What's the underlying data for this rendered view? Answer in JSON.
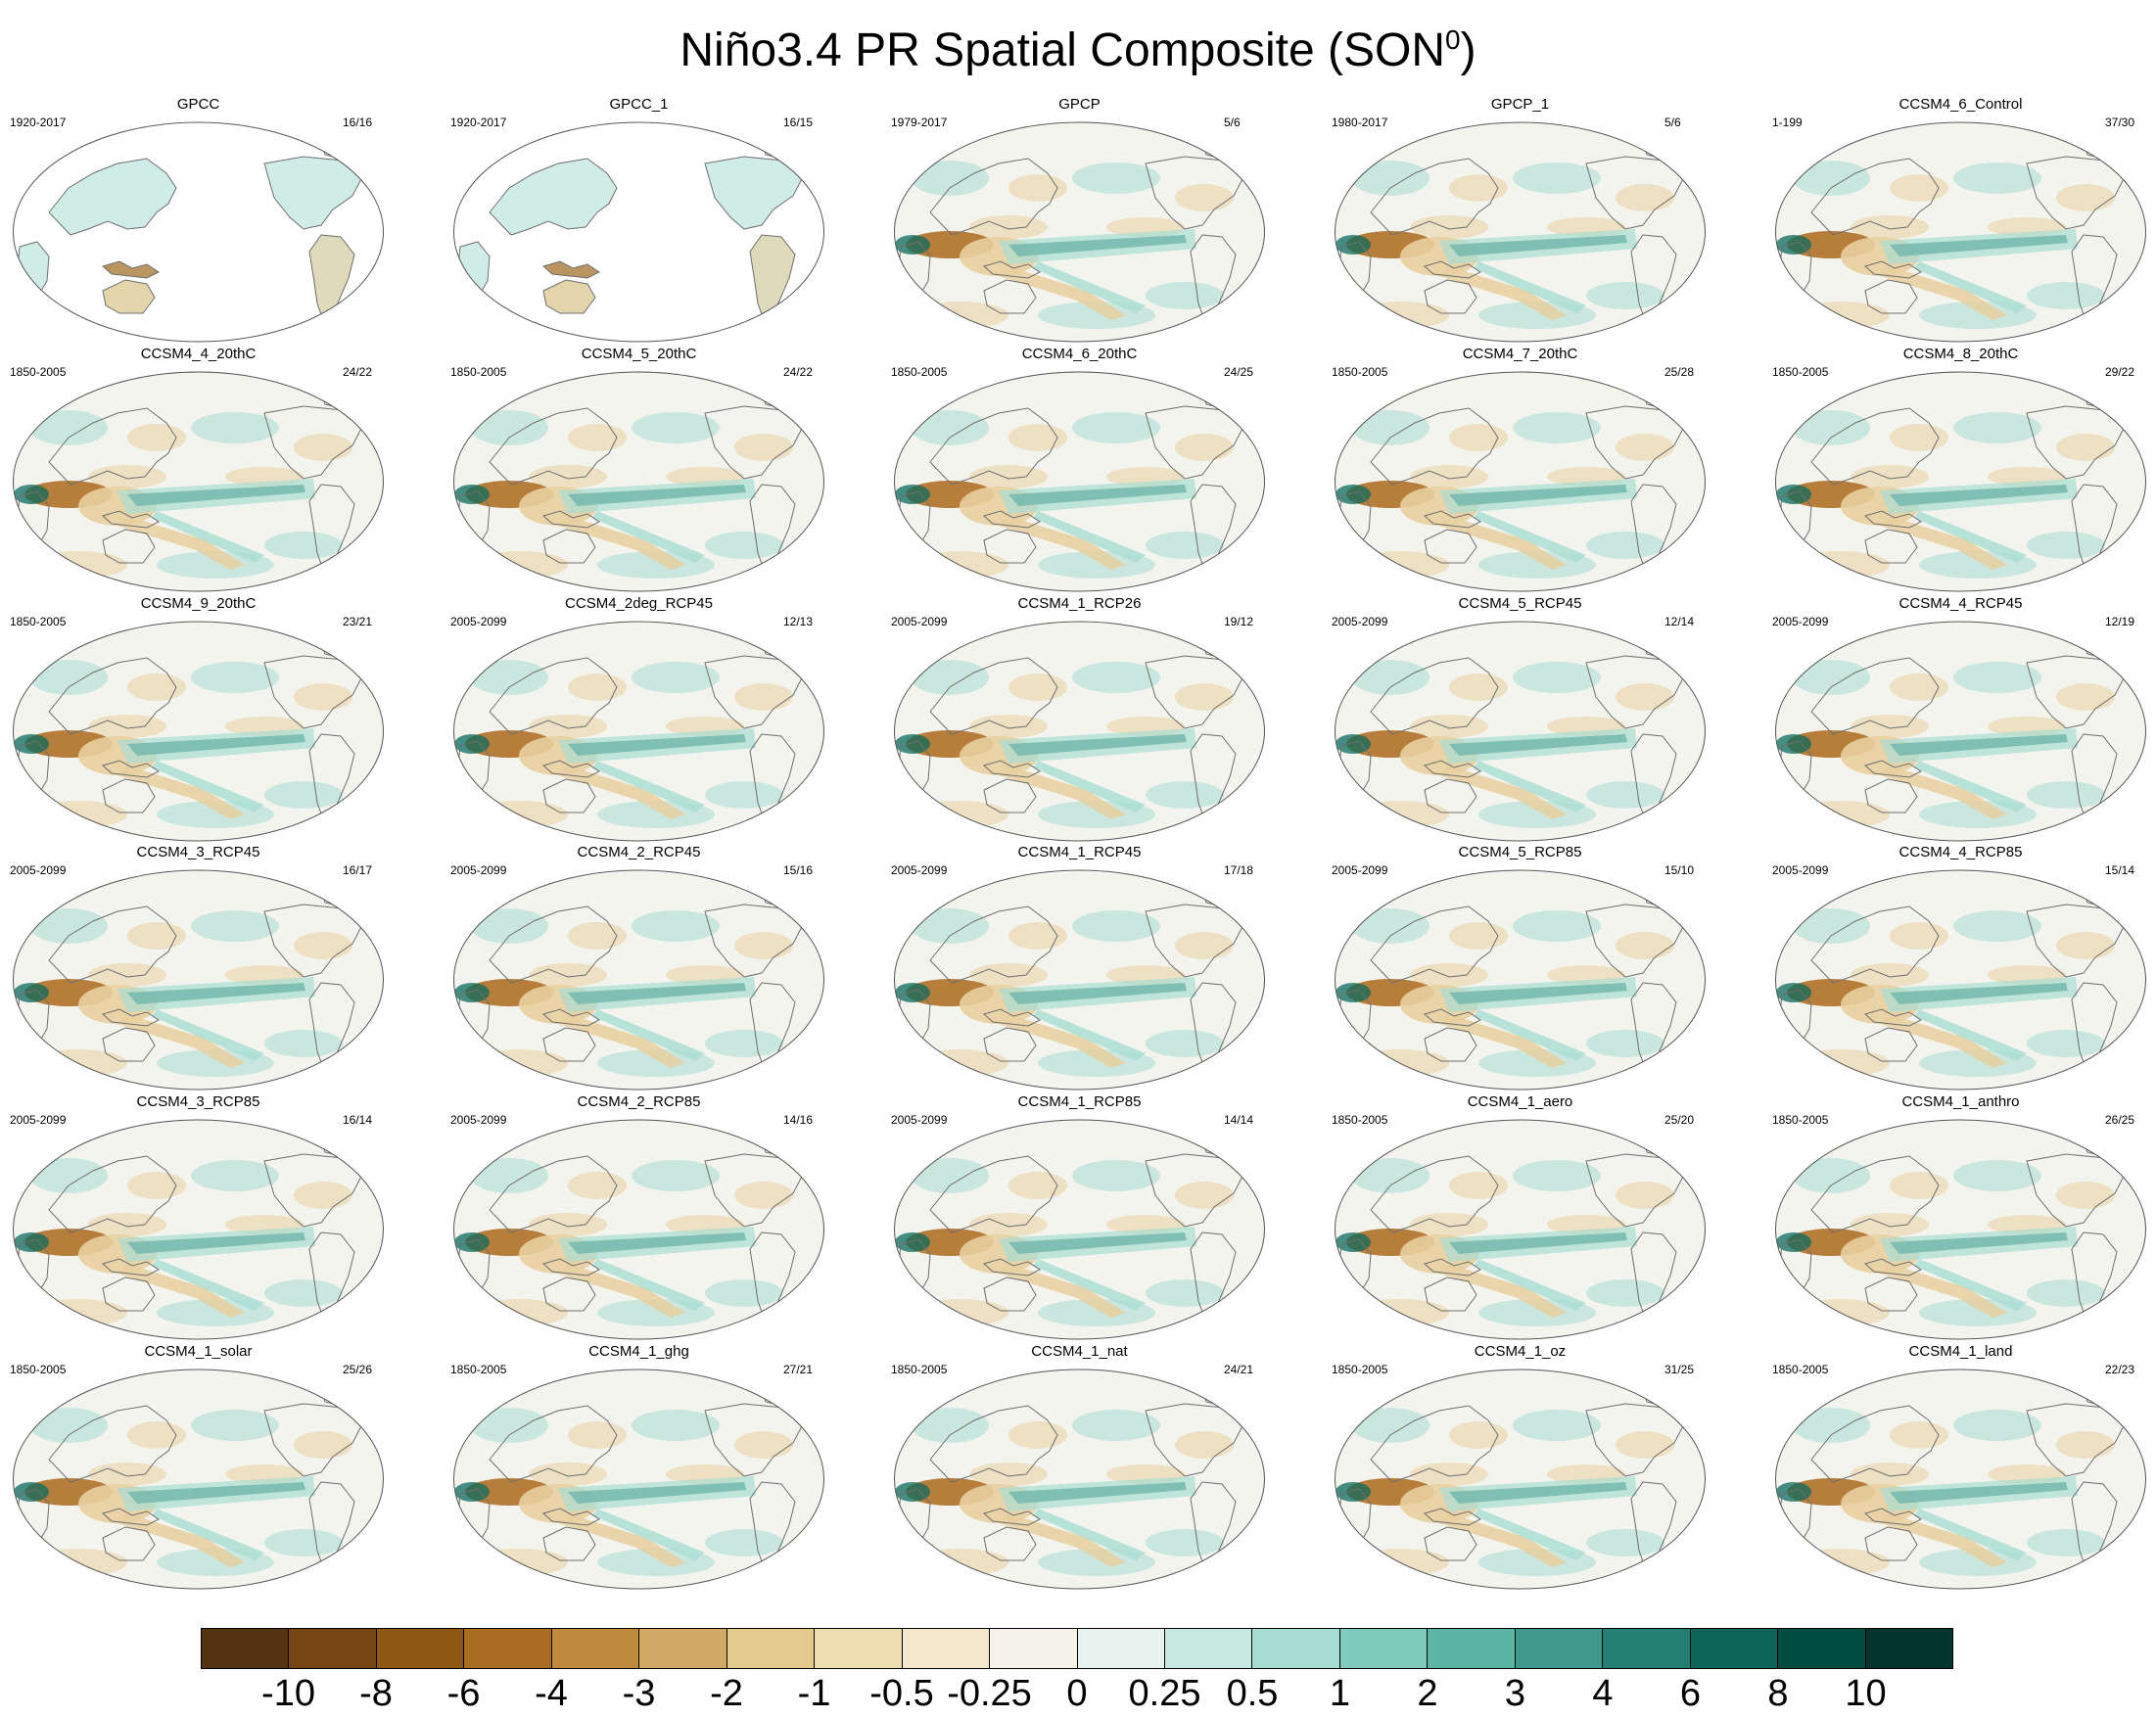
{
  "title": {
    "main": "Niño3.4 PR Spatial Composite (SON",
    "superscript": "0",
    "close": ")"
  },
  "panels": [
    {
      "title": "GPCC",
      "years": "1920-2017",
      "count": "16/16",
      "observed": "gpcc"
    },
    {
      "title": "GPCC_1",
      "years": "1920-2017",
      "count": "16/15",
      "observed": "gpcc"
    },
    {
      "title": "GPCP",
      "years": "1979-2017",
      "count": "5/6",
      "observed": "gpcp"
    },
    {
      "title": "GPCP_1",
      "years": "1980-2017",
      "count": "5/6",
      "observed": "gpcp"
    },
    {
      "title": "CCSM4_6_Control",
      "years": "1-199",
      "count": "37/30",
      "observed": "model"
    },
    {
      "title": "CCSM4_4_20thC",
      "years": "1850-2005",
      "count": "24/22",
      "observed": "model"
    },
    {
      "title": "CCSM4_5_20thC",
      "years": "1850-2005",
      "count": "24/22",
      "observed": "model"
    },
    {
      "title": "CCSM4_6_20thC",
      "years": "1850-2005",
      "count": "24/25",
      "observed": "model"
    },
    {
      "title": "CCSM4_7_20thC",
      "years": "1850-2005",
      "count": "25/28",
      "observed": "model"
    },
    {
      "title": "CCSM4_8_20thC",
      "years": "1850-2005",
      "count": "29/22",
      "observed": "model"
    },
    {
      "title": "CCSM4_9_20thC",
      "years": "1850-2005",
      "count": "23/21",
      "observed": "model"
    },
    {
      "title": "CCSM4_2deg_RCP45",
      "years": "2005-2099",
      "count": "12/13",
      "observed": "model"
    },
    {
      "title": "CCSM4_1_RCP26",
      "years": "2005-2099",
      "count": "19/12",
      "observed": "model"
    },
    {
      "title": "CCSM4_5_RCP45",
      "years": "2005-2099",
      "count": "12/14",
      "observed": "model"
    },
    {
      "title": "CCSM4_4_RCP45",
      "years": "2005-2099",
      "count": "12/19",
      "observed": "model"
    },
    {
      "title": "CCSM4_3_RCP45",
      "years": "2005-2099",
      "count": "16/17",
      "observed": "model"
    },
    {
      "title": "CCSM4_2_RCP45",
      "years": "2005-2099",
      "count": "15/16",
      "observed": "model"
    },
    {
      "title": "CCSM4_1_RCP45",
      "years": "2005-2099",
      "count": "17/18",
      "observed": "model"
    },
    {
      "title": "CCSM4_5_RCP85",
      "years": "2005-2099",
      "count": "15/10",
      "observed": "model"
    },
    {
      "title": "CCSM4_4_RCP85",
      "years": "2005-2099",
      "count": "15/14",
      "observed": "model"
    },
    {
      "title": "CCSM4_3_RCP85",
      "years": "2005-2099",
      "count": "16/14",
      "observed": "model"
    },
    {
      "title": "CCSM4_2_RCP85",
      "years": "2005-2099",
      "count": "14/16",
      "observed": "model"
    },
    {
      "title": "CCSM4_1_RCP85",
      "years": "2005-2099",
      "count": "14/14",
      "observed": "model"
    },
    {
      "title": "CCSM4_1_aero",
      "years": "1850-2005",
      "count": "25/20",
      "observed": "model"
    },
    {
      "title": "CCSM4_1_anthro",
      "years": "1850-2005",
      "count": "26/25",
      "observed": "model"
    },
    {
      "title": "CCSM4_1_solar",
      "years": "1850-2005",
      "count": "25/26",
      "observed": "model"
    },
    {
      "title": "CCSM4_1_ghg",
      "years": "1850-2005",
      "count": "27/21",
      "observed": "model"
    },
    {
      "title": "CCSM4_1_nat",
      "years": "1850-2005",
      "count": "24/21",
      "observed": "model"
    },
    {
      "title": "CCSM4_1_oz",
      "years": "1850-2005",
      "count": "31/25",
      "observed": "model"
    },
    {
      "title": "CCSM4_1_land",
      "years": "1850-2005",
      "count": "22/23",
      "observed": "model"
    }
  ],
  "colorbar": {
    "colors": [
      "#553310",
      "#754512",
      "#8f5713",
      "#a96d21",
      "#bf8a3b",
      "#d2aa65",
      "#e4c98d",
      "#efdcaf",
      "#f3e8cc",
      "#f5f2e8",
      "#e6f3ef",
      "#c6e8e0",
      "#a4dcd1",
      "#80cbbd",
      "#5cb5a5",
      "#3f9a8d",
      "#237f72",
      "#0a6458",
      "#034c42",
      "#01352e"
    ],
    "labels": [
      "-10",
      "-8",
      "-6",
      "-4",
      "-3",
      "-2",
      "-1",
      "-0.5",
      "-0.25",
      "0",
      "0.25",
      "0.5",
      "1",
      "2",
      "3",
      "4",
      "6",
      "8",
      "10"
    ]
  },
  "map_colors": {
    "land_outline": "#6e6e6e",
    "ocean_bg": "#f4f4ef",
    "dry": "#b07027",
    "wet": "#0b6b5e",
    "mild_wet": "#a8ddd2",
    "mild_dry": "#e8cf9f"
  }
}
